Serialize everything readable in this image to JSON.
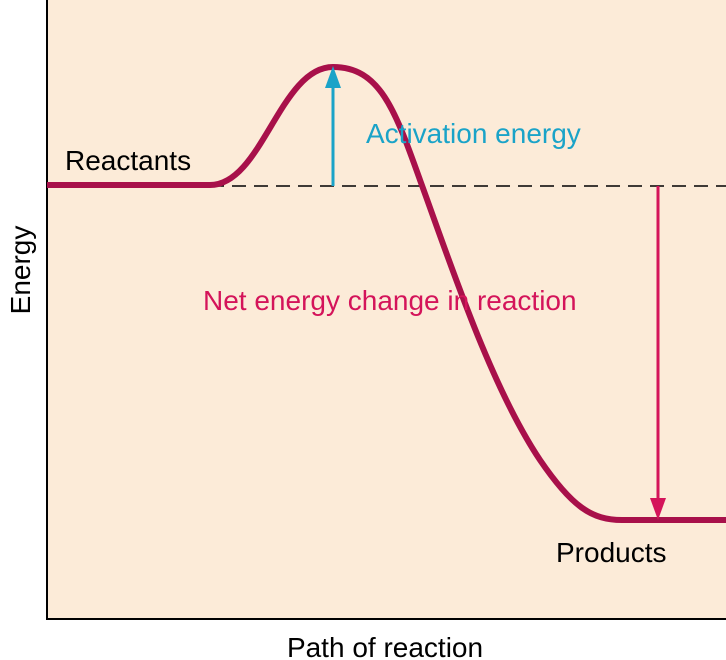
{
  "axes": {
    "y_label": "Energy",
    "x_label": "Path of reaction"
  },
  "labels": {
    "reactants": "Reactants",
    "activation": "Activation energy",
    "net_change": "Net energy change in reaction",
    "products": "Products"
  }
}
